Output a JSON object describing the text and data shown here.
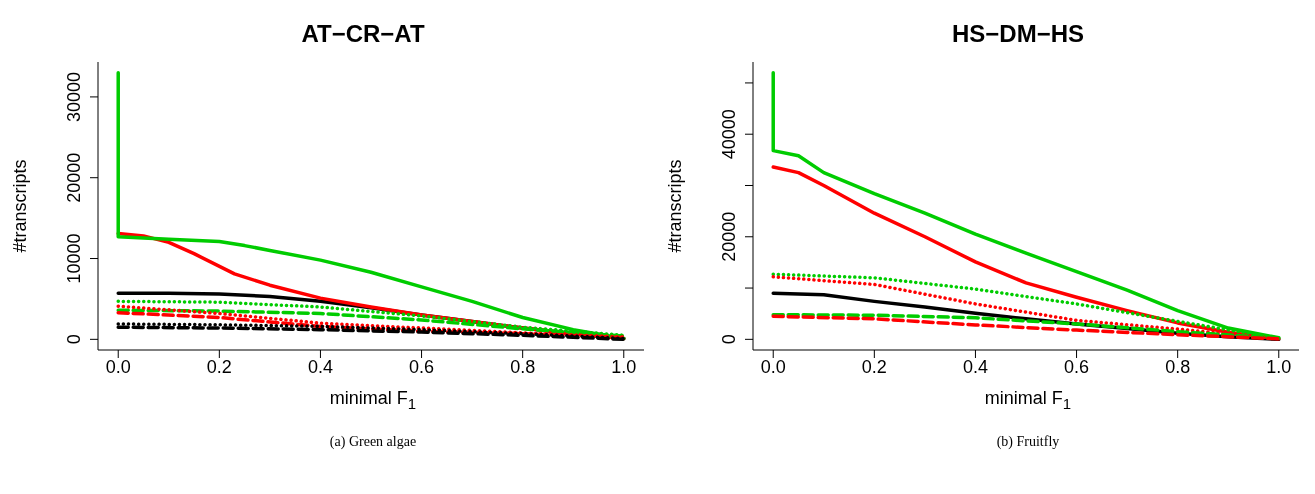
{
  "chart_data": [
    {
      "type": "line",
      "title": "AT−CR−AT",
      "xlabel": "minimal F$_{1}$",
      "ylabel": "#transcripts",
      "annotations": [
        "(a) Green algae"
      ],
      "xlim": [
        -0.04,
        1.04
      ],
      "ylim": [
        -1320,
        34320
      ],
      "xticks": [
        {
          "value": 0,
          "label": "0.0"
        },
        {
          "value": 0.2,
          "label": "0.2"
        },
        {
          "value": 0.4,
          "label": "0.4"
        },
        {
          "value": 0.6,
          "label": "0.6"
        },
        {
          "value": 0.8,
          "label": "0.8"
        },
        {
          "value": 1,
          "label": "1.0"
        }
      ],
      "yticks": [
        0,
        10000,
        20000,
        30000
      ],
      "series": [
        {
          "color": "#000000",
          "line_style": "solid",
          "x": [
            0,
            0.1,
            0.2,
            0.3,
            0.4,
            0.5,
            0.6,
            0.7,
            0.8,
            0.9,
            1
          ],
          "values": [
            5700,
            5700,
            5600,
            5300,
            4700,
            3900,
            3000,
            2200,
            1400,
            700,
            100
          ]
        },
        {
          "color": "#ff0000",
          "line_style": "solid",
          "x": [
            0,
            0.05,
            0.1,
            0.15,
            0.23,
            0.3,
            0.4,
            0.5,
            0.6,
            0.7,
            0.8,
            0.9,
            1
          ],
          "values": [
            13100,
            12800,
            12000,
            10600,
            8100,
            6700,
            5100,
            4000,
            3000,
            2200,
            1400,
            700,
            100
          ]
        },
        {
          "color": "#00cc00",
          "line_style": "solid",
          "x": [
            0,
            0,
            0.1,
            0.2,
            0.25,
            0.3,
            0.4,
            0.5,
            0.6,
            0.7,
            0.8,
            0.9,
            1
          ],
          "values": [
            33000,
            12700,
            12400,
            12100,
            11600,
            11000,
            9800,
            8300,
            6500,
            4700,
            2700,
            1200,
            100
          ]
        },
        {
          "color": "#00cc00",
          "line_style": "dotted",
          "x": [
            0,
            0.2,
            0.4,
            0.6,
            0.8,
            1
          ],
          "values": [
            4700,
            4600,
            4000,
            2900,
            1500,
            500
          ]
        },
        {
          "color": "#00cc00",
          "line_style": "dashed",
          "x": [
            0,
            0.2,
            0.4,
            0.6,
            0.8,
            1
          ],
          "values": [
            3600,
            3500,
            3200,
            2400,
            1300,
            400
          ]
        },
        {
          "color": "#ff0000",
          "line_style": "dotted",
          "x": [
            0,
            0.2,
            0.4,
            0.6,
            0.8,
            1
          ],
          "values": [
            4100,
            3200,
            2000,
            1400,
            800,
            300
          ]
        },
        {
          "color": "#ff0000",
          "line_style": "dashed",
          "x": [
            0,
            0.2,
            0.4,
            0.6,
            0.8,
            1
          ],
          "values": [
            3300,
            2700,
            1600,
            1000,
            700,
            200
          ]
        },
        {
          "color": "#000000",
          "line_style": "dotted",
          "x": [
            0,
            0.2,
            0.4,
            0.6,
            0.8,
            1
          ],
          "values": [
            1900,
            1800,
            1600,
            1200,
            700,
            100
          ]
        },
        {
          "color": "#000000",
          "line_style": "dashed",
          "x": [
            0,
            0.2,
            0.4,
            0.6,
            0.8,
            1
          ],
          "values": [
            1500,
            1400,
            1200,
            900,
            500,
            0
          ]
        }
      ]
    },
    {
      "type": "line",
      "title": "HS−DM−HS",
      "xlabel": "minimal F$_{1}$",
      "ylabel": "#transcripts",
      "annotations": [
        "(b) Fruitfly"
      ],
      "xlim": [
        -0.04,
        1.04
      ],
      "ylim": [
        -2080,
        54080
      ],
      "xticks": [
        {
          "value": 0,
          "label": "0.0"
        },
        {
          "value": 0.2,
          "label": "0.2"
        },
        {
          "value": 0.4,
          "label": "0.4"
        },
        {
          "value": 0.6,
          "label": "0.6"
        },
        {
          "value": 0.8,
          "label": "0.8"
        },
        {
          "value": 1,
          "label": "1.0"
        }
      ],
      "yticks": [
        0,
        {
          "value": 10000,
          "label": null
        },
        20000,
        {
          "value": 30000,
          "label": null
        },
        40000,
        {
          "value": 50000,
          "label": null
        }
      ],
      "series": [
        {
          "color": "#000000",
          "line_style": "solid",
          "x": [
            0,
            0.1,
            0.2,
            0.3,
            0.4,
            0.5,
            0.6,
            0.7,
            0.8,
            0.9,
            1
          ],
          "values": [
            9000,
            8700,
            7400,
            6300,
            5100,
            4000,
            3000,
            2100,
            1200,
            500,
            0
          ]
        },
        {
          "color": "#ff0000",
          "line_style": "solid",
          "x": [
            0,
            0.05,
            0.1,
            0.2,
            0.3,
            0.4,
            0.5,
            0.6,
            0.7,
            0.8,
            0.9,
            1
          ],
          "values": [
            33600,
            32500,
            30000,
            24600,
            20000,
            15100,
            11000,
            8200,
            5600,
            3200,
            1400,
            100
          ]
        },
        {
          "color": "#00cc00",
          "line_style": "solid",
          "x": [
            0,
            0,
            0.05,
            0.1,
            0.2,
            0.3,
            0.4,
            0.5,
            0.6,
            0.7,
            0.8,
            0.9,
            1
          ],
          "values": [
            52000,
            36800,
            35800,
            32500,
            28400,
            24600,
            20500,
            16800,
            13200,
            9600,
            5600,
            2200,
            300
          ]
        },
        {
          "color": "#00cc00",
          "line_style": "dotted",
          "x": [
            0,
            0.2,
            0.4,
            0.6,
            0.8,
            1
          ],
          "values": [
            12700,
            12000,
            9800,
            6900,
            3500,
            200
          ]
        },
        {
          "color": "#ff0000",
          "line_style": "dotted",
          "x": [
            0,
            0.2,
            0.4,
            0.6,
            0.8,
            1
          ],
          "values": [
            12200,
            10700,
            6900,
            3700,
            2000,
            100
          ]
        },
        {
          "color": "#00cc00",
          "line_style": "dashed",
          "x": [
            0,
            0.2,
            0.4,
            0.6,
            0.8,
            1
          ],
          "values": [
            4800,
            4700,
            4200,
            3000,
            1500,
            200
          ]
        },
        {
          "color": "#ff0000",
          "line_style": "dashed",
          "x": [
            0,
            0.2,
            0.4,
            0.6,
            0.8,
            1
          ],
          "values": [
            4500,
            4000,
            2800,
            1800,
            900,
            100
          ]
        }
      ]
    }
  ]
}
